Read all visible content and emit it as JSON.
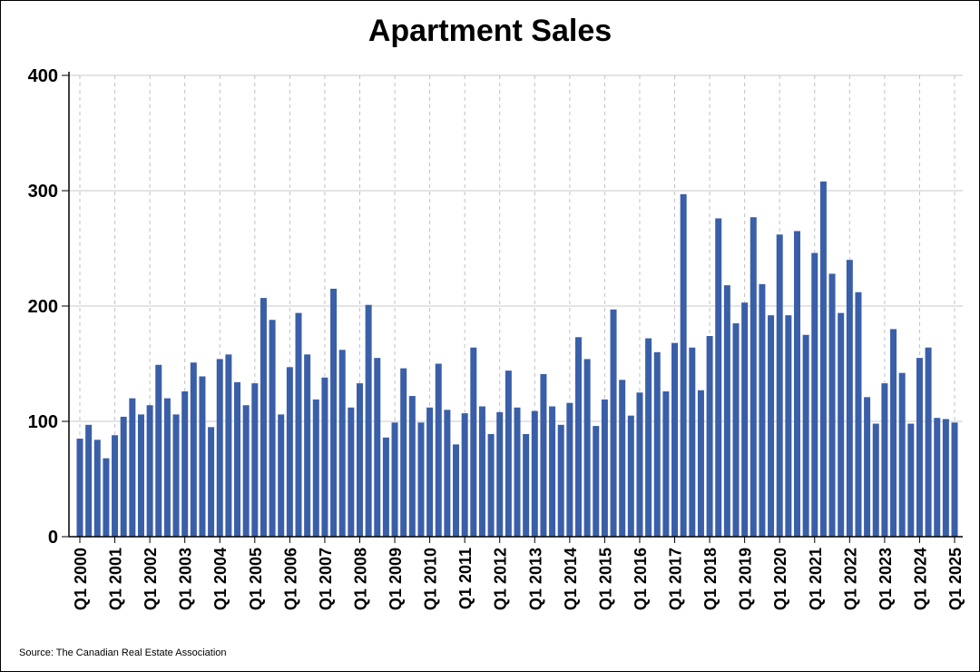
{
  "chart_data": {
    "type": "bar",
    "title": "Apartment Sales",
    "xlabel": "",
    "ylabel": "",
    "ylim": [
      0,
      400
    ],
    "yticks": [
      0,
      100,
      200,
      300,
      400
    ],
    "grid": true,
    "bar_color": "#3A5FA8",
    "categories": [
      "Q1 2000",
      "Q2 2000",
      "Q3 2000",
      "Q4 2000",
      "Q1 2001",
      "Q2 2001",
      "Q3 2001",
      "Q4 2001",
      "Q1 2002",
      "Q2 2002",
      "Q3 2002",
      "Q4 2002",
      "Q1 2003",
      "Q2 2003",
      "Q3 2003",
      "Q4 2003",
      "Q1 2004",
      "Q2 2004",
      "Q3 2004",
      "Q4 2004",
      "Q1 2005",
      "Q2 2005",
      "Q3 2005",
      "Q4 2005",
      "Q1 2006",
      "Q2 2006",
      "Q3 2006",
      "Q4 2006",
      "Q1 2007",
      "Q2 2007",
      "Q3 2007",
      "Q4 2007",
      "Q1 2008",
      "Q2 2008",
      "Q3 2008",
      "Q4 2008",
      "Q1 2009",
      "Q2 2009",
      "Q3 2009",
      "Q4 2009",
      "Q1 2010",
      "Q2 2010",
      "Q3 2010",
      "Q4 2010",
      "Q1 2011",
      "Q2 2011",
      "Q3 2011",
      "Q4 2011",
      "Q1 2012",
      "Q2 2012",
      "Q3 2012",
      "Q4 2012",
      "Q1 2013",
      "Q2 2013",
      "Q3 2013",
      "Q4 2013",
      "Q1 2014",
      "Q2 2014",
      "Q3 2014",
      "Q4 2014",
      "Q1 2015",
      "Q2 2015",
      "Q3 2015",
      "Q4 2015",
      "Q1 2016",
      "Q2 2016",
      "Q3 2016",
      "Q4 2016",
      "Q1 2017",
      "Q2 2017",
      "Q3 2017",
      "Q4 2017",
      "Q1 2018",
      "Q2 2018",
      "Q3 2018",
      "Q4 2018",
      "Q1 2019",
      "Q2 2019",
      "Q3 2019",
      "Q4 2019",
      "Q1 2020",
      "Q2 2020",
      "Q3 2020",
      "Q4 2020",
      "Q1 2021",
      "Q2 2021",
      "Q3 2021",
      "Q4 2021",
      "Q1 2022",
      "Q2 2022",
      "Q3 2022",
      "Q4 2022",
      "Q1 2023",
      "Q2 2023",
      "Q3 2023",
      "Q4 2023",
      "Q1 2024",
      "Q2 2024",
      "Q3 2024",
      "Q4 2024",
      "Q1 2025"
    ],
    "values": [
      85,
      97,
      84,
      68,
      88,
      104,
      120,
      106,
      114,
      149,
      120,
      106,
      126,
      151,
      139,
      95,
      154,
      158,
      134,
      114,
      133,
      207,
      188,
      106,
      147,
      194,
      158,
      119,
      138,
      215,
      162,
      112,
      133,
      201,
      155,
      86,
      99,
      146,
      122,
      99,
      112,
      150,
      110,
      80,
      107,
      164,
      113,
      89,
      108,
      144,
      112,
      89,
      109,
      141,
      113,
      97,
      116,
      173,
      154,
      96,
      119,
      197,
      136,
      105,
      125,
      172,
      160,
      126,
      168,
      297,
      164,
      127,
      174,
      276,
      218,
      185,
      203,
      277,
      219,
      192,
      262,
      192,
      265,
      175,
      246,
      308,
      228,
      194,
      240,
      212,
      121,
      98,
      133,
      180,
      142,
      98,
      155,
      164,
      103,
      102,
      99
    ],
    "xtick_labels": [
      "Q1 2000",
      "Q1 2001",
      "Q1 2002",
      "Q1 2003",
      "Q1 2004",
      "Q1 2005",
      "Q1 2006",
      "Q1 2007",
      "Q1 2008",
      "Q1 2009",
      "Q1 2010",
      "Q1 2011",
      "Q1 2012",
      "Q1 2013",
      "Q1 2014",
      "Q1 2015",
      "Q1 2016",
      "Q1 2017",
      "Q1 2018",
      "Q1 2019",
      "Q1 2020",
      "Q1 2021",
      "Q1 2022",
      "Q1 2023",
      "Q1 2024",
      "Q1 2025"
    ],
    "source": "Source: The Canadian Real Estate Association"
  }
}
